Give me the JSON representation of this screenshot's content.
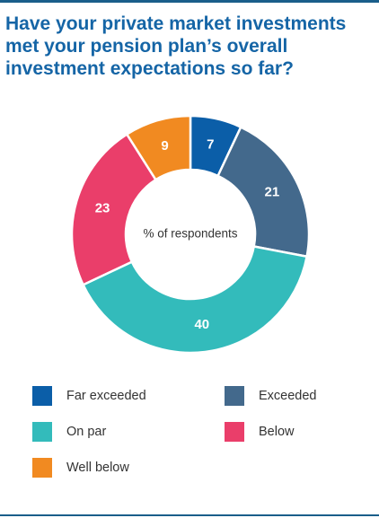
{
  "title_lines": [
    "Have your private market investments",
    "met your pension plan’s overall",
    "investment expectations so far?"
  ],
  "chart_data": {
    "type": "pie",
    "variant": "donut",
    "center_label": "% of respondents",
    "categories": [
      "Far exceeded",
      "Exceeded",
      "On par",
      "Below",
      "Well below"
    ],
    "values": [
      7,
      21,
      40,
      23,
      9
    ],
    "colors": [
      "#0b5ea8",
      "#43698c",
      "#33bbbb",
      "#ea3e6a",
      "#f18a21"
    ],
    "legend_placement": "bottom"
  },
  "legend": [
    {
      "label": "Far exceeded",
      "color": "#0b5ea8"
    },
    {
      "label": "Exceeded",
      "color": "#43698c"
    },
    {
      "label": "On par",
      "color": "#33bbbb"
    },
    {
      "label": "Below",
      "color": "#ea3e6a"
    },
    {
      "label": "Well below",
      "color": "#f18a21"
    }
  ]
}
